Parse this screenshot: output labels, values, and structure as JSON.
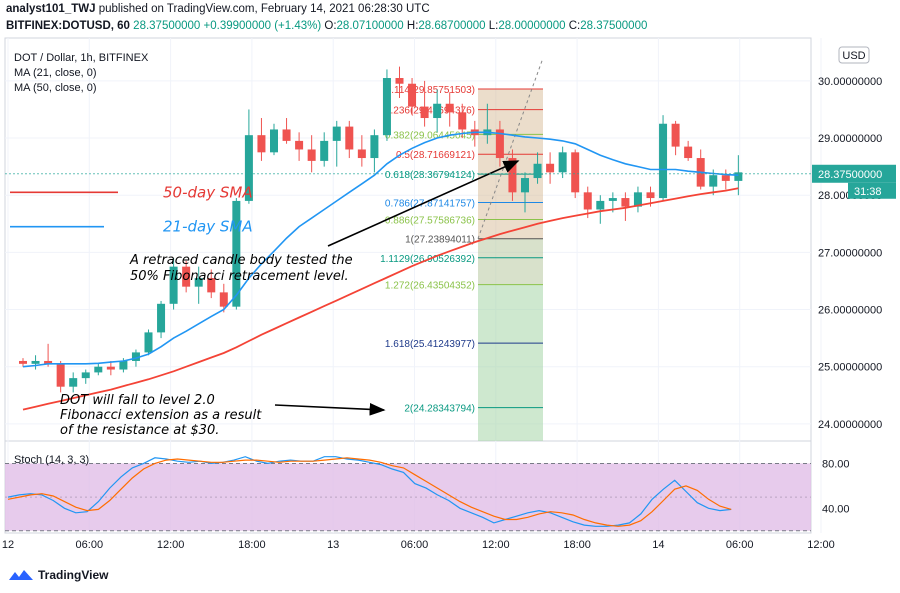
{
  "header": {
    "author": "analyst101_TWJ",
    "published_text": "published on TradingView.com, February 14, 2021 06:28:30 UTC",
    "symbol": "BITFINEX:DOTUSD, 60",
    "last": "28.37500000",
    "change": "+0.39900000 (+1.43%)",
    "o": "28.07100000",
    "h": "28.68700000",
    "l": "28.00000000",
    "c": "28.37500000"
  },
  "legend": {
    "title": "DOT / Dollar, 1h, BITFINEX",
    "ma21": "MA (21, close, 0)",
    "ma50": "MA (50, close, 0)"
  },
  "price_axis": {
    "currency": "USD",
    "ticks": [
      "30.00000000",
      "29.00000000",
      "28.00000000",
      "27.00000000",
      "26.00000000",
      "25.00000000",
      "24.00000000"
    ],
    "current_price": "28.37500000",
    "countdown": "31:38"
  },
  "stoch_axis": {
    "label": "Stoch (14, 3, 3)",
    "ticks": [
      "80.00",
      "40.00"
    ]
  },
  "time_axis": [
    "12",
    "06:00",
    "12:00",
    "18:00",
    "13",
    "06:00",
    "12:00",
    "18:00",
    "14",
    "06:00",
    "12:00"
  ],
  "fib_levels": [
    {
      "label": "0.114(29.85751503)",
      "color": "#e53935"
    },
    {
      "label": "0.236(29.49694376)",
      "color": "#e53935"
    },
    {
      "label": "0.382(29.06445045)",
      "color": "#8bc34a"
    },
    {
      "label": "0.5(28.71669121)",
      "color": "#e53935"
    },
    {
      "label": "0.618(28.36794124)",
      "color": "#089981"
    },
    {
      "label": "0.786(27.87141757)",
      "color": "#1e88e5"
    },
    {
      "label": "0.886(27.57586736)",
      "color": "#8bc34a"
    },
    {
      "label": "1(27.23894011)",
      "color": "#555555"
    },
    {
      "label": "1.1129(26.90526392)",
      "color": "#089981"
    },
    {
      "label": "1.272(26.43504352)",
      "color": "#8bc34a"
    },
    {
      "label": "1.618(25.41243977)",
      "color": "#1e3a8a"
    },
    {
      "label": "2(24.28343794)",
      "color": "#089981"
    }
  ],
  "annotations": {
    "sma50": "50-day SMA",
    "sma21": "21-day SMA",
    "note1_line1": "A retraced candle body tested the",
    "note1_line2": "50% Fibonacci retracement level.",
    "note2_line1": "DOT will fall to level 2.0",
    "note2_line2": "Fibonacci extension as a result",
    "note2_line3": "of the resistance at $30."
  },
  "branding": "TradingView",
  "colors": {
    "up": "#26a69a",
    "down": "#ef5350",
    "ma21": "#2196f3",
    "ma50": "#f44336",
    "stoch_k": "#2196f3",
    "stoch_d": "#ff6d00",
    "stoch_bg": "#e1bee7"
  },
  "chart_data": {
    "type": "candlestick",
    "price_range": [
      23.7,
      30.75
    ],
    "stoch_range": [
      18,
      100
    ],
    "candles": [
      [
        25.1,
        25.15,
        25.0,
        25.05
      ],
      [
        25.05,
        25.2,
        24.95,
        25.1
      ],
      [
        25.1,
        25.4,
        25.0,
        25.05
      ],
      [
        25.05,
        25.1,
        24.55,
        24.65
      ],
      [
        24.65,
        24.9,
        24.55,
        24.8
      ],
      [
        24.8,
        24.95,
        24.7,
        24.9
      ],
      [
        24.9,
        25.05,
        24.85,
        25.0
      ],
      [
        25.0,
        25.1,
        24.85,
        24.95
      ],
      [
        24.95,
        25.15,
        24.9,
        25.1
      ],
      [
        25.1,
        25.3,
        25.0,
        25.25
      ],
      [
        25.25,
        25.65,
        25.2,
        25.6
      ],
      [
        25.6,
        26.15,
        25.5,
        26.1
      ],
      [
        26.1,
        26.9,
        26.0,
        26.75
      ],
      [
        26.75,
        26.85,
        26.3,
        26.4
      ],
      [
        26.4,
        26.75,
        26.1,
        26.55
      ],
      [
        26.55,
        26.7,
        26.2,
        26.3
      ],
      [
        26.3,
        26.45,
        25.95,
        26.05
      ],
      [
        26.05,
        27.95,
        26.0,
        27.9
      ],
      [
        27.9,
        29.5,
        27.85,
        29.05
      ],
      [
        29.05,
        29.35,
        28.6,
        28.75
      ],
      [
        28.75,
        29.25,
        28.7,
        29.15
      ],
      [
        29.15,
        29.35,
        28.9,
        28.95
      ],
      [
        28.95,
        29.1,
        28.6,
        28.8
      ],
      [
        28.8,
        29.05,
        28.4,
        28.6
      ],
      [
        28.6,
        29.1,
        28.5,
        28.95
      ],
      [
        28.95,
        29.3,
        28.5,
        29.2
      ],
      [
        29.2,
        29.3,
        28.65,
        28.8
      ],
      [
        28.8,
        29.05,
        28.5,
        28.65
      ],
      [
        28.65,
        29.15,
        28.4,
        29.05
      ],
      [
        29.05,
        30.2,
        28.95,
        30.05
      ],
      [
        30.05,
        30.25,
        29.7,
        29.95
      ],
      [
        29.95,
        30.05,
        29.4,
        29.55
      ],
      [
        29.55,
        30.0,
        29.2,
        29.35
      ],
      [
        29.35,
        29.85,
        29.1,
        29.6
      ],
      [
        29.6,
        29.8,
        29.2,
        29.45
      ],
      [
        29.45,
        29.6,
        29.0,
        29.15
      ],
      [
        29.15,
        29.3,
        28.85,
        29.05
      ],
      [
        29.05,
        29.6,
        28.9,
        29.15
      ],
      [
        29.15,
        29.3,
        28.5,
        28.65
      ],
      [
        28.65,
        28.8,
        27.9,
        28.05
      ],
      [
        28.05,
        28.4,
        27.7,
        28.3
      ],
      [
        28.3,
        28.75,
        28.2,
        28.55
      ],
      [
        28.55,
        28.75,
        28.2,
        28.4
      ],
      [
        28.4,
        28.85,
        28.3,
        28.75
      ],
      [
        28.75,
        28.8,
        27.95,
        28.05
      ],
      [
        28.05,
        28.15,
        27.6,
        27.75
      ],
      [
        27.75,
        28.0,
        27.5,
        27.9
      ],
      [
        27.9,
        28.05,
        27.7,
        27.95
      ],
      [
        27.95,
        28.05,
        27.55,
        27.8
      ],
      [
        27.8,
        28.15,
        27.7,
        28.05
      ],
      [
        28.05,
        28.15,
        27.8,
        27.95
      ],
      [
        27.95,
        29.4,
        27.9,
        29.25
      ],
      [
        29.25,
        29.3,
        28.7,
        28.85
      ],
      [
        28.85,
        28.95,
        28.6,
        28.65
      ],
      [
        28.65,
        28.8,
        28.1,
        28.15
      ],
      [
        28.15,
        28.45,
        28.0,
        28.35
      ],
      [
        28.35,
        28.45,
        28.1,
        28.25
      ],
      [
        28.25,
        28.7,
        28.0,
        28.4
      ]
    ],
    "ma21": [
      25.0,
      25.02,
      25.05,
      25.05,
      25.05,
      25.05,
      25.06,
      25.08,
      25.1,
      25.15,
      25.22,
      25.35,
      25.5,
      25.62,
      25.75,
      25.88,
      26.0,
      26.25,
      26.55,
      26.8,
      27.02,
      27.25,
      27.45,
      27.6,
      27.75,
      27.9,
      28.05,
      28.2,
      28.35,
      28.55,
      28.7,
      28.82,
      28.92,
      29.0,
      29.05,
      29.08,
      29.1,
      29.1,
      29.08,
      29.05,
      29.02,
      29.0,
      28.98,
      28.95,
      28.9,
      28.8,
      28.7,
      28.62,
      28.55,
      28.5,
      28.45,
      28.45,
      28.45,
      28.42,
      28.4,
      28.38,
      28.36,
      28.35
    ],
    "ma50": [
      24.25,
      24.3,
      24.35,
      24.4,
      24.45,
      24.5,
      24.55,
      24.6,
      24.66,
      24.72,
      24.78,
      24.85,
      24.92,
      25.0,
      25.08,
      25.16,
      25.24,
      25.34,
      25.45,
      25.56,
      25.66,
      25.76,
      25.86,
      25.96,
      26.06,
      26.16,
      26.26,
      26.36,
      26.46,
      26.56,
      26.66,
      26.76,
      26.85,
      26.94,
      27.02,
      27.1,
      27.18,
      27.25,
      27.32,
      27.38,
      27.44,
      27.5,
      27.55,
      27.6,
      27.64,
      27.68,
      27.72,
      27.75,
      27.78,
      27.82,
      27.86,
      27.9,
      27.94,
      27.98,
      28.02,
      28.05,
      28.08,
      28.12
    ],
    "stoch_k": [
      50,
      52,
      53,
      52,
      47,
      40,
      36,
      37,
      46,
      58,
      68,
      76,
      80,
      85,
      84,
      82,
      81,
      82,
      80,
      81,
      83,
      86,
      82,
      80,
      82,
      83,
      82,
      82,
      86,
      86,
      84,
      83,
      81,
      79,
      75,
      72,
      62,
      58,
      52,
      47,
      40,
      36,
      32,
      27,
      30,
      33,
      36,
      38,
      36,
      32,
      28,
      25,
      24,
      24,
      25,
      27,
      35,
      48,
      57,
      65,
      55,
      45,
      40,
      38,
      39
    ],
    "stoch_d": [
      48,
      50,
      52,
      53,
      51,
      46,
      41,
      38,
      39,
      47,
      57,
      67,
      75,
      80,
      83,
      84,
      83,
      82,
      81,
      81,
      82,
      83,
      83,
      82,
      81,
      82,
      82,
      82,
      83,
      84,
      85,
      84,
      83,
      81,
      78,
      76,
      70,
      64,
      58,
      52,
      46,
      41,
      37,
      33,
      30,
      30,
      32,
      35,
      37,
      36,
      34,
      30,
      27,
      25,
      24,
      25,
      29,
      37,
      47,
      57,
      60,
      56,
      48,
      42,
      39
    ]
  }
}
